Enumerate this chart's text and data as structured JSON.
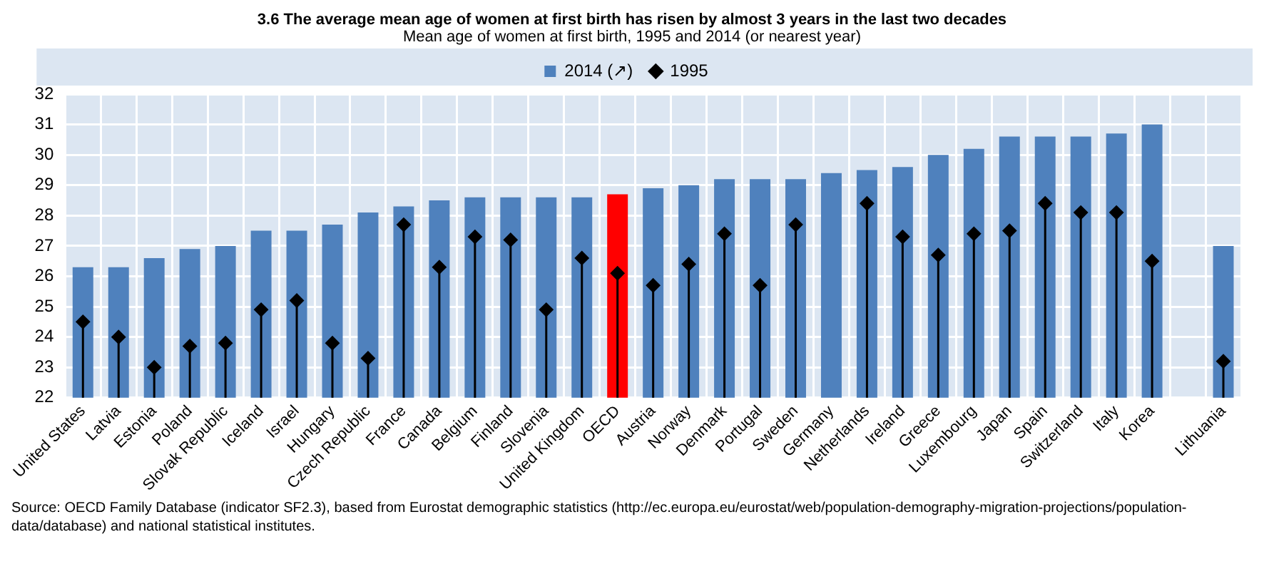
{
  "chart_data": {
    "type": "bar",
    "title": "3.6 The average mean age of women at first birth has risen by almost 3 years in the last two decades",
    "subtitle": "Mean age of women at first birth, 1995 and 2014 (or nearest year)",
    "categories": [
      "United States",
      "Latvia",
      "Estonia",
      "Poland",
      "Slovak Republic",
      "Iceland",
      "Israel",
      "Hungary",
      "Czech Republic",
      "France",
      "Canada",
      "Belgium",
      "Finland",
      "Slovenia",
      "United Kingdom",
      "OECD",
      "Austria",
      "Norway",
      "Denmark",
      "Portugal",
      "Sweden",
      "Germany",
      "Netherlands",
      "Ireland",
      "Greece",
      "Luxembourg",
      "Japan",
      "Spain",
      "Switzerland",
      "Italy",
      "Korea",
      null,
      "Lithuania"
    ],
    "series": [
      {
        "name": "2014 (↗)",
        "color": "#4f81bd",
        "colors": [
          "#4f81bd",
          "#4f81bd",
          "#4f81bd",
          "#4f81bd",
          "#4f81bd",
          "#4f81bd",
          "#4f81bd",
          "#4f81bd",
          "#4f81bd",
          "#4f81bd",
          "#4f81bd",
          "#4f81bd",
          "#4f81bd",
          "#4f81bd",
          "#4f81bd",
          "#ff0000",
          "#4f81bd",
          "#4f81bd",
          "#4f81bd",
          "#4f81bd",
          "#4f81bd",
          "#4f81bd",
          "#4f81bd",
          "#4f81bd",
          "#4f81bd",
          "#4f81bd",
          "#4f81bd",
          "#4f81bd",
          "#4f81bd",
          "#4f81bd",
          "#4f81bd",
          "#4f81bd",
          "#4f81bd"
        ],
        "values": [
          26.3,
          26.3,
          26.6,
          26.9,
          27.0,
          27.5,
          27.5,
          27.7,
          28.1,
          28.3,
          28.5,
          28.6,
          28.6,
          28.6,
          28.6,
          28.7,
          28.9,
          29.0,
          29.2,
          29.2,
          29.2,
          29.4,
          29.5,
          29.6,
          30.0,
          30.2,
          30.6,
          30.6,
          30.6,
          30.7,
          31.0,
          null,
          27.0
        ]
      },
      {
        "name": "1995",
        "type": "lollipop",
        "color": "#000000",
        "marker": "diamond",
        "values": [
          24.5,
          24.0,
          23.0,
          23.7,
          23.8,
          24.9,
          25.2,
          23.8,
          23.3,
          27.7,
          26.3,
          27.3,
          27.2,
          24.9,
          26.6,
          26.1,
          25.7,
          26.4,
          27.4,
          25.7,
          27.7,
          null,
          28.4,
          27.3,
          26.7,
          27.4,
          27.5,
          28.4,
          28.1,
          28.1,
          26.5,
          null,
          23.2
        ]
      }
    ],
    "ylim": [
      22,
      32
    ],
    "yticks": [
      22,
      23,
      24,
      25,
      26,
      27,
      28,
      29,
      30,
      31,
      32
    ],
    "grid": true,
    "legend": "top",
    "annotations": [
      "Source: OECD Family Database (indicator SF2.3), based from Eurostat demographic statistics (http://ec.europa.eu/eurostat/web/population-demography-migration-projections/population-data/database) and national statistical institutes."
    ]
  }
}
